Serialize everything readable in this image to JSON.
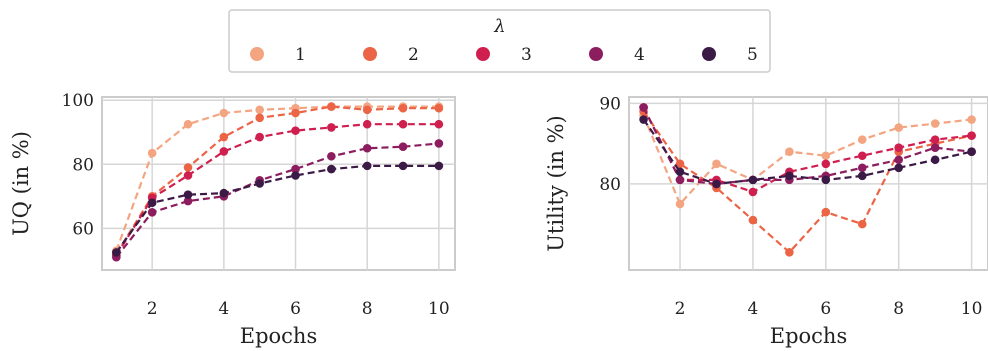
{
  "legend": {
    "title": "λ",
    "entries": [
      {
        "label": "1",
        "color": "#f3a582"
      },
      {
        "label": "2",
        "color": "#ec6446"
      },
      {
        "label": "3",
        "color": "#cf1f4f"
      },
      {
        "label": "4",
        "color": "#8c1d5f"
      },
      {
        "label": "5",
        "color": "#3b1a46"
      }
    ]
  },
  "chart_data": [
    {
      "type": "line",
      "xlabel": "Epochs",
      "ylabel": "UQ (in %)",
      "x": [
        1,
        2,
        3,
        4,
        5,
        6,
        7,
        8,
        9,
        10
      ],
      "xticks": [
        2,
        4,
        6,
        8,
        10
      ],
      "yticks": [
        60,
        80,
        100
      ],
      "xlim": [
        0.6,
        10.45
      ],
      "ylim": [
        47,
        101
      ],
      "grid": true,
      "series": [
        {
          "name": "1",
          "color": "#f3a582",
          "values": [
            53,
            83.5,
            92.5,
            96,
            97,
            97.5,
            98,
            98,
            98,
            98
          ]
        },
        {
          "name": "2",
          "color": "#ec6446",
          "values": [
            52,
            70,
            79,
            88.5,
            94.5,
            96,
            98,
            97,
            97.5,
            97.5
          ]
        },
        {
          "name": "3",
          "color": "#cf1f4f",
          "values": [
            51.5,
            69.5,
            76.5,
            84,
            88.5,
            90.5,
            91.5,
            92.5,
            92.5,
            92.5
          ]
        },
        {
          "name": "4",
          "color": "#8c1d5f",
          "values": [
            51,
            65,
            68.5,
            70,
            75,
            78.5,
            82.5,
            85,
            85.5,
            86.5
          ]
        },
        {
          "name": "5",
          "color": "#3b1a46",
          "values": [
            52.5,
            68,
            70.5,
            71,
            74,
            76.5,
            78.5,
            79.5,
            79.5,
            79.5
          ]
        }
      ]
    },
    {
      "type": "line",
      "xlabel": "Epochs",
      "ylabel": "Utility (in %)",
      "x": [
        1,
        2,
        3,
        4,
        5,
        6,
        7,
        8,
        9,
        10
      ],
      "xticks": [
        2,
        4,
        6,
        8,
        10
      ],
      "yticks": [
        80,
        90
      ],
      "xlim": [
        0.6,
        10.45
      ],
      "ylim": [
        69.3,
        90.8
      ],
      "grid": true,
      "series": [
        {
          "name": "1",
          "color": "#f3a582",
          "values": [
            88.5,
            77.5,
            82.5,
            80.5,
            84,
            83.5,
            85.5,
            87,
            87.5,
            88
          ]
        },
        {
          "name": "2",
          "color": "#ec6446",
          "values": [
            89,
            82.5,
            79.5,
            75.5,
            71.5,
            76.5,
            75,
            84,
            85,
            86
          ]
        },
        {
          "name": "3",
          "color": "#cf1f4f",
          "values": [
            89.5,
            80.5,
            80.5,
            79,
            81.5,
            82.5,
            83.5,
            84.5,
            85.5,
            86
          ]
        },
        {
          "name": "4",
          "color": "#8c1d5f",
          "values": [
            89.5,
            80.5,
            80,
            80.5,
            80.5,
            81,
            82,
            83,
            84.5,
            84
          ]
        },
        {
          "name": "5",
          "color": "#3b1a46",
          "values": [
            88,
            81.5,
            80,
            80.5,
            81,
            80.5,
            81,
            82,
            83,
            84
          ]
        }
      ]
    }
  ]
}
